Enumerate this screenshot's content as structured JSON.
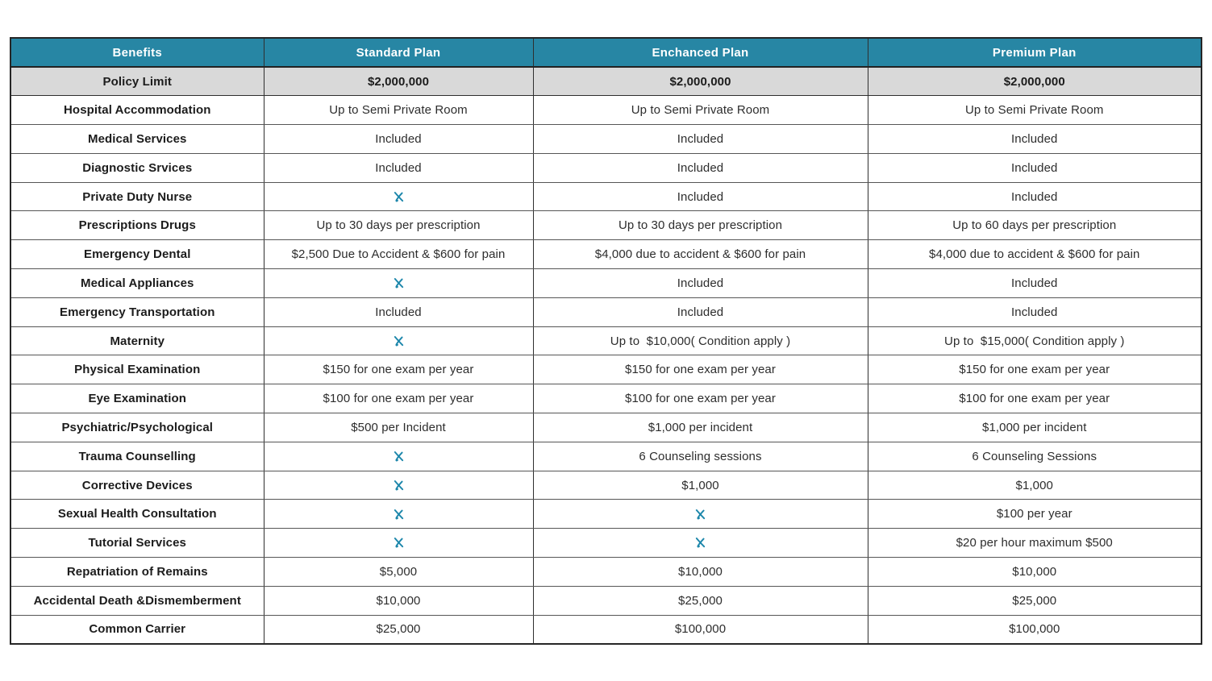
{
  "colors": {
    "header_bg": "#2786a4",
    "header_text": "#ffffff",
    "highlight_row_bg": "#d9d9d9",
    "x_icon": "#1d87ab",
    "border": "#2f2f2f"
  },
  "table": {
    "icon_marker": "__X__",
    "icon_meaning": "not-covered-x-mark",
    "columns": [
      "Benefits",
      "Standard Plan",
      "Enchanced Plan",
      "Premium Plan"
    ],
    "rows": [
      {
        "label": "Policy Limit",
        "highlight": true,
        "values": [
          "$2,000,000",
          "$2,000,000",
          "$2,000,000"
        ]
      },
      {
        "label": "Hospital Accommodation",
        "values": [
          "Up to Semi Private Room",
          "Up to Semi Private Room",
          "Up to Semi Private Room"
        ]
      },
      {
        "label": "Medical Services",
        "values": [
          "Included",
          "Included",
          "Included"
        ]
      },
      {
        "label": "Diagnostic Srvices",
        "values": [
          "Included",
          "Included",
          "Included"
        ]
      },
      {
        "label": "Private Duty Nurse",
        "values": [
          "__X__",
          "Included",
          "Included"
        ]
      },
      {
        "label": "Prescriptions Drugs",
        "values": [
          "Up to 30 days per prescription",
          "Up to 30 days per prescription",
          "Up to 60 days per prescription"
        ]
      },
      {
        "label": "Emergency Dental",
        "values": [
          "$2,500 Due to Accident & $600 for pain",
          "$4,000 due to accident & $600 for pain",
          "$4,000 due to accident & $600 for pain"
        ]
      },
      {
        "label": "Medical Appliances",
        "values": [
          "__X__",
          "Included",
          "Included"
        ]
      },
      {
        "label": "Emergency Transportation",
        "values": [
          "Included",
          "Included",
          "Included"
        ]
      },
      {
        "label": "Maternity",
        "values": [
          "__X__",
          "Up to  $10,000( Condition apply )",
          "Up to  $15,000( Condition apply )"
        ]
      },
      {
        "label": "Physical Examination",
        "values": [
          "$150 for one exam per year",
          "$150 for one exam per year",
          "$150 for one exam per year"
        ]
      },
      {
        "label": "Eye Examination",
        "values": [
          "$100 for one exam per year",
          "$100 for one exam per year",
          "$100 for one exam per year"
        ]
      },
      {
        "label": "Psychiatric/Psychological",
        "values": [
          "$500 per Incident",
          "$1,000 per incident",
          "$1,000 per incident"
        ]
      },
      {
        "label": "Trauma Counselling",
        "values": [
          "__X__",
          "6 Counseling sessions",
          "6 Counseling Sessions"
        ]
      },
      {
        "label": "Corrective Devices",
        "values": [
          "__X__",
          "$1,000",
          "$1,000"
        ]
      },
      {
        "label": "Sexual Health Consultation",
        "values": [
          "__X__",
          "__X__",
          "$100 per year"
        ]
      },
      {
        "label": "Tutorial Services",
        "values": [
          "__X__",
          "__X__",
          "$20 per hour maximum $500"
        ]
      },
      {
        "label": "Repatriation of Remains",
        "values": [
          "$5,000",
          "$10,000",
          "$10,000"
        ]
      },
      {
        "label": "Accidental Death &Dismemberment",
        "values": [
          "$10,000",
          "$25,000",
          "$25,000"
        ]
      },
      {
        "label": "Common Carrier",
        "values": [
          "$25,000",
          "$100,000",
          "$100,000"
        ]
      }
    ]
  }
}
